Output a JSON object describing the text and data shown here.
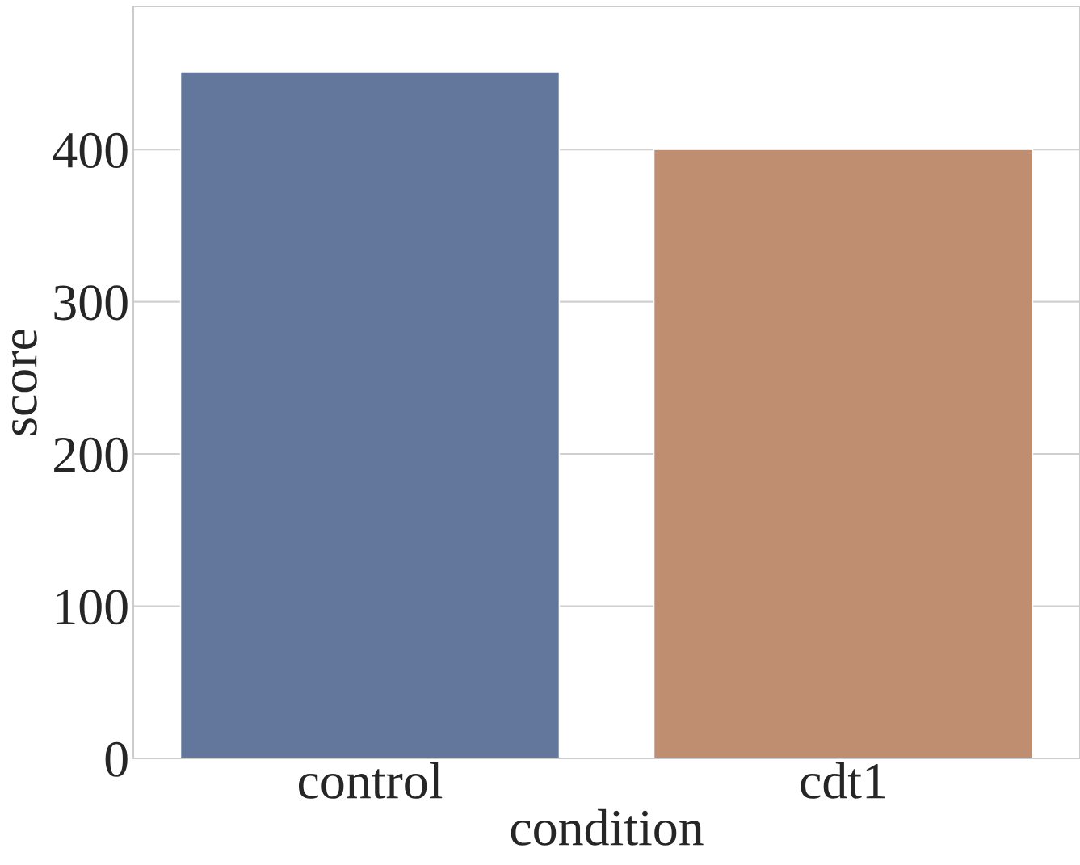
{
  "chart_data": {
    "type": "bar",
    "xlabel": "condition",
    "ylabel": "score",
    "categories": [
      "control",
      "cdt1"
    ],
    "values": [
      451,
      400
    ],
    "colors": [
      "#5875a4",
      "#cc8963"
    ],
    "ylim": [
      0,
      494
    ],
    "yticks": [
      0,
      100,
      200,
      300,
      400
    ],
    "grid": "y"
  }
}
